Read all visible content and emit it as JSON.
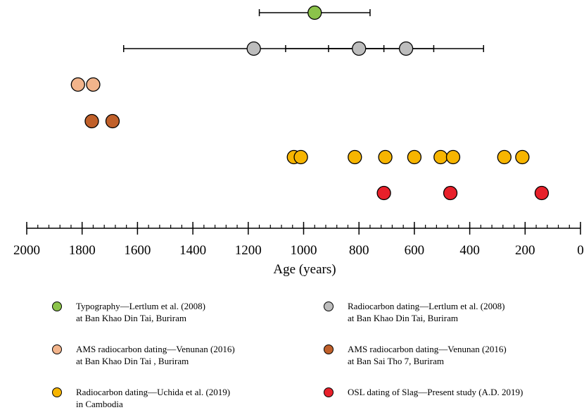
{
  "chart_data": {
    "type": "scatter",
    "xlabel": "Age (years)",
    "xlim": [
      2000,
      0
    ],
    "x_ticks_major": [
      2000,
      1800,
      1600,
      1400,
      1200,
      1000,
      800,
      600,
      400,
      200,
      0
    ],
    "x_tick_labels": [
      "2000",
      "1800",
      "1600",
      "1400",
      "1200",
      "1000",
      "800",
      "600",
      "400",
      "200",
      "0"
    ],
    "x_minor_step": 40,
    "grid": false,
    "legend_placement": "bottom",
    "series": [
      {
        "name": "Typography—Lertlum et al. (2008)",
        "name_line2": "at Ban Khao Din Tai, Buriram",
        "color": "#8bc34a",
        "points": [
          {
            "x": 960,
            "err": [
              1160,
              760
            ]
          }
        ]
      },
      {
        "name": "Radiocarbon dating—Lertlum et al. (2008)",
        "name_line2": "at Ban Khao Din Tai, Buriram",
        "color": "#bdbdbd",
        "points": [
          {
            "x": 1180,
            "err": [
              1650,
              710
            ]
          },
          {
            "x": 800,
            "err": [
              1065,
              530
            ]
          },
          {
            "x": 630,
            "err": [
              910,
              350
            ]
          }
        ]
      },
      {
        "name": "AMS radiocarbon dating—Venunan (2016)",
        "name_line2": "at Ban Khao Din Tai , Buriram",
        "color": "#f2b48b",
        "points": [
          {
            "x": 1815,
            "err": [
              1835,
              1795
            ]
          },
          {
            "x": 1760,
            "err": [
              1780,
              1740
            ]
          }
        ]
      },
      {
        "name": "AMS radiocarbon dating—Venunan (2016)",
        "name_line2": "at Ban Sai Tho 7, Buriram",
        "color": "#c0602a",
        "points": [
          {
            "x": 1765,
            "err": [
              1785,
              1745
            ]
          },
          {
            "x": 1690,
            "err": [
              1710,
              1670
            ]
          }
        ]
      },
      {
        "name": "Radiocarbon dating—Uchida et al. (2019)",
        "name_line2": "in Cambodia",
        "color": "#f7b500",
        "points": [
          {
            "x": 1035
          },
          {
            "x": 1010
          },
          {
            "x": 815
          },
          {
            "x": 705
          },
          {
            "x": 600
          },
          {
            "x": 505
          },
          {
            "x": 460
          },
          {
            "x": 275
          },
          {
            "x": 210
          }
        ]
      },
      {
        "name": "OSL dating of Slag—Present study (A.D. 2019)",
        "name_line2": "",
        "color": "#e8202a",
        "points": [
          {
            "x": 710
          },
          {
            "x": 470
          },
          {
            "x": 140
          }
        ]
      }
    ]
  }
}
